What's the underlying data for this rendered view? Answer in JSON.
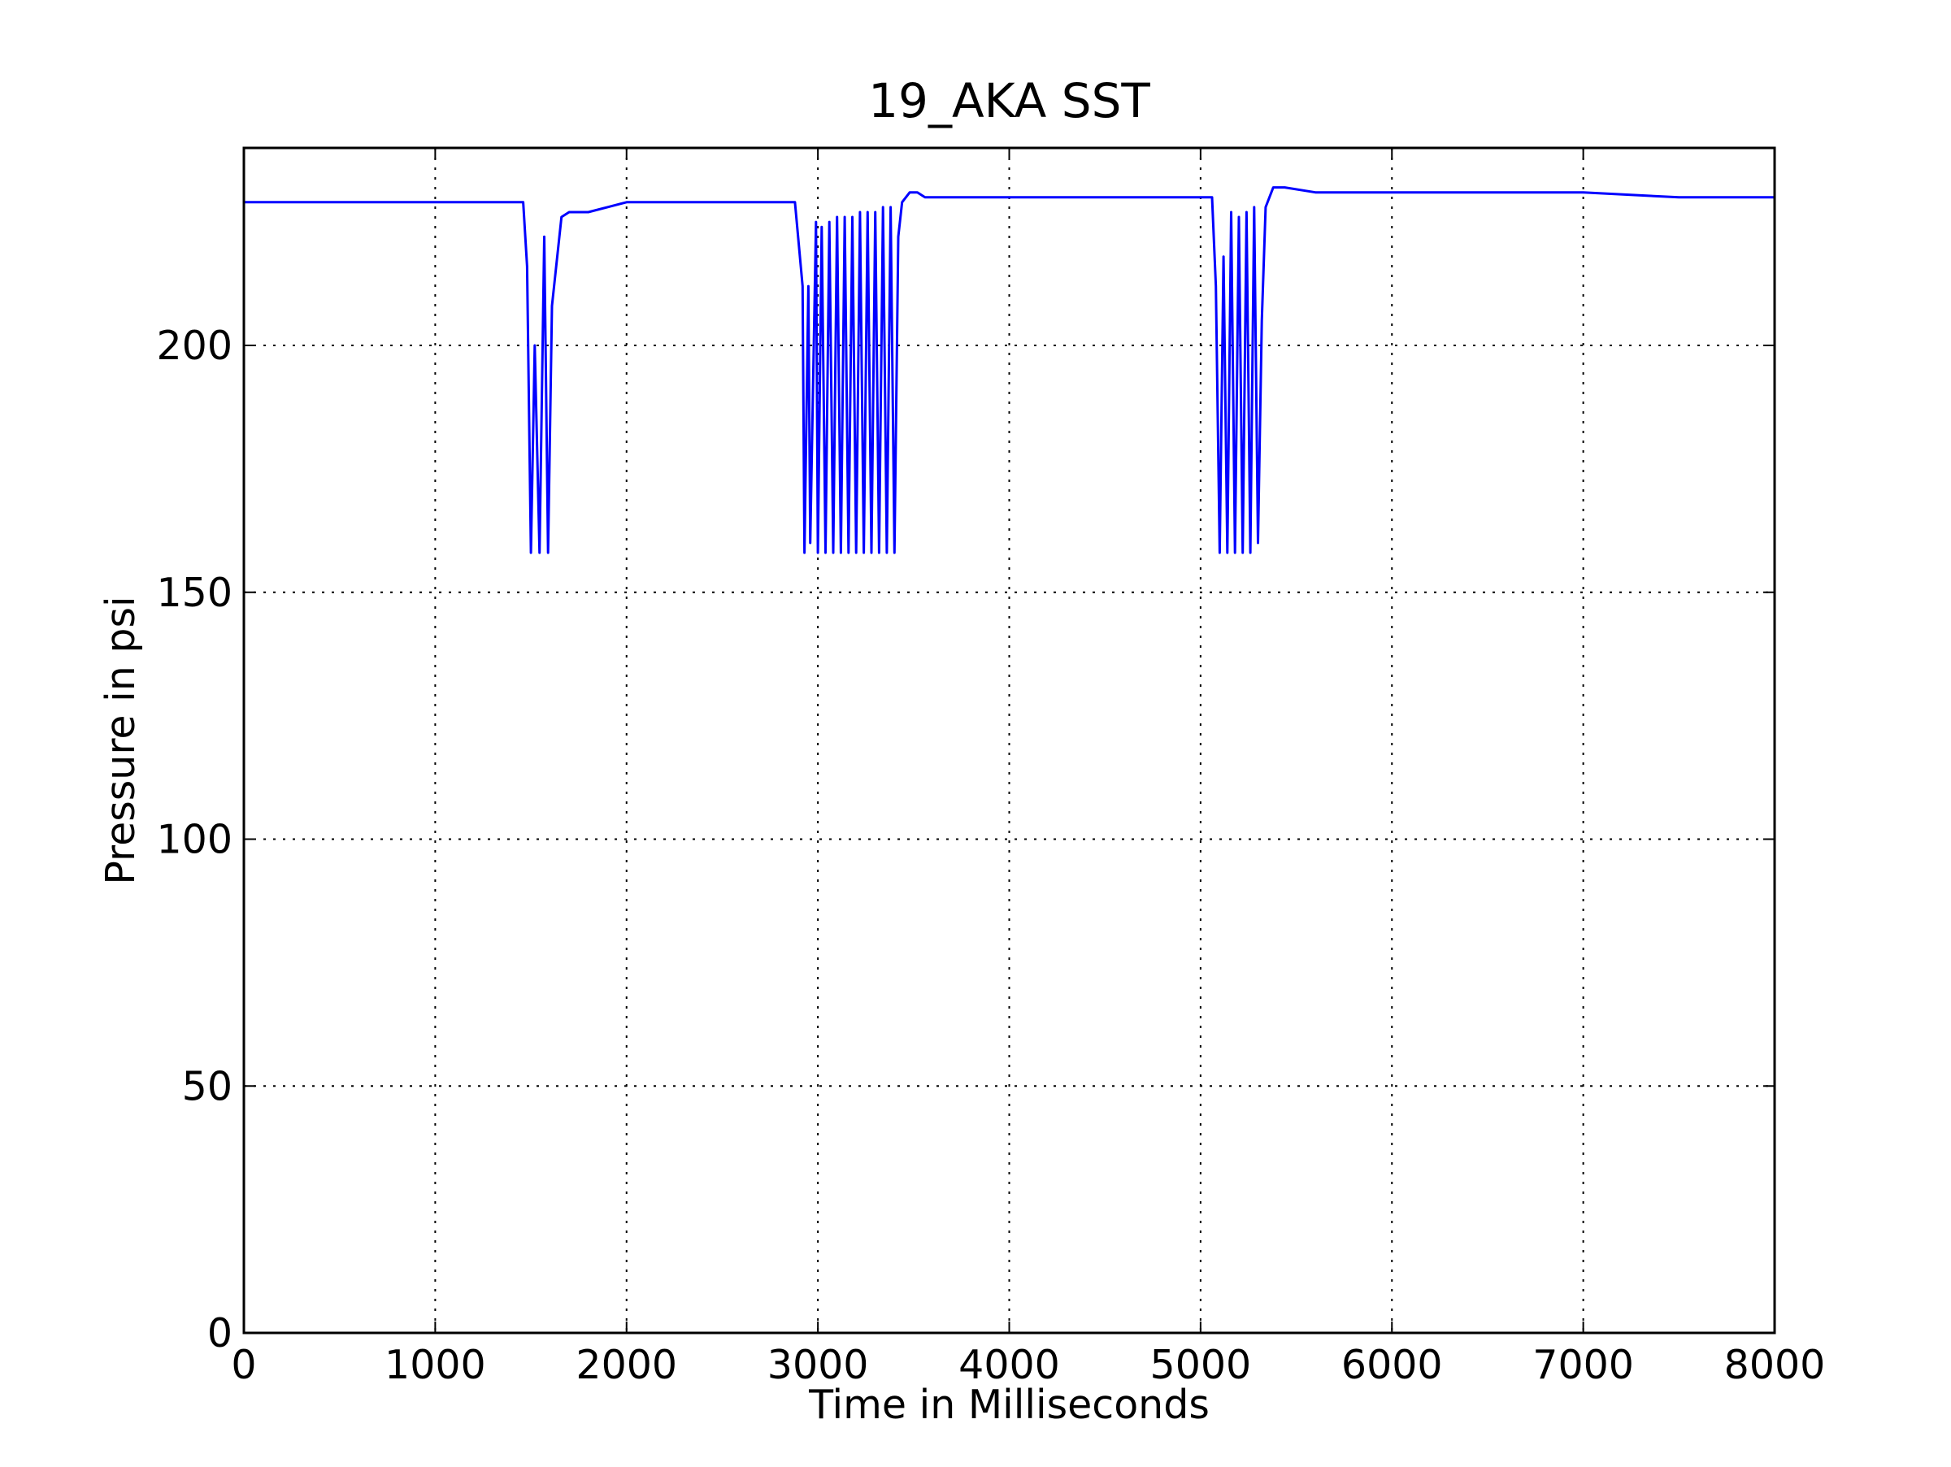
{
  "chart_data": {
    "type": "line",
    "title": "19_AKA SST",
    "xlabel": "Time in Milliseconds",
    "ylabel": "Pressure in psi",
    "xlim": [
      0,
      8000
    ],
    "ylim": [
      0,
      240
    ],
    "x_ticks": [
      0,
      1000,
      2000,
      3000,
      4000,
      5000,
      6000,
      7000,
      8000
    ],
    "y_ticks": [
      0,
      50,
      100,
      150,
      200
    ],
    "grid": true,
    "colors": {
      "line": "#0000ff",
      "axes": "#000000",
      "grid": "#000000"
    },
    "series": [
      {
        "x": [
          0,
          300,
          600,
          900,
          1200,
          1460,
          1480,
          1500,
          1520,
          1545,
          1570,
          1590,
          1610,
          1660,
          1700,
          1800,
          1900,
          2000,
          2200,
          2400,
          2600,
          2800,
          2880,
          2920,
          2930,
          2950,
          2960,
          2990,
          3000,
          3020,
          3040,
          3060,
          3080,
          3100,
          3120,
          3140,
          3160,
          3180,
          3200,
          3220,
          3240,
          3260,
          3280,
          3300,
          3320,
          3340,
          3360,
          3380,
          3400,
          3420,
          3440,
          3480,
          3520,
          3560,
          3700,
          4000,
          4300,
          4600,
          4900,
          5060,
          5080,
          5100,
          5120,
          5140,
          5160,
          5180,
          5200,
          5220,
          5240,
          5260,
          5280,
          5300,
          5320,
          5340,
          5380,
          5440,
          5600,
          6000,
          6500,
          7000,
          7500,
          8000
        ],
        "y": [
          229,
          229,
          229,
          229,
          229,
          229,
          216,
          158,
          200,
          158,
          222,
          158,
          208,
          226,
          227,
          227,
          228,
          229,
          229,
          229,
          229,
          229,
          229,
          212,
          158,
          212,
          160,
          225,
          158,
          224,
          158,
          225,
          158,
          226,
          158,
          226,
          158,
          226,
          158,
          227,
          158,
          227,
          158,
          227,
          158,
          228,
          158,
          228,
          158,
          222,
          229,
          231,
          231,
          230,
          230,
          230,
          230,
          230,
          230,
          230,
          212,
          158,
          218,
          158,
          227,
          158,
          226,
          158,
          227,
          158,
          228,
          160,
          205,
          228,
          232,
          232,
          231,
          231,
          231,
          231,
          230,
          230
        ]
      }
    ]
  }
}
